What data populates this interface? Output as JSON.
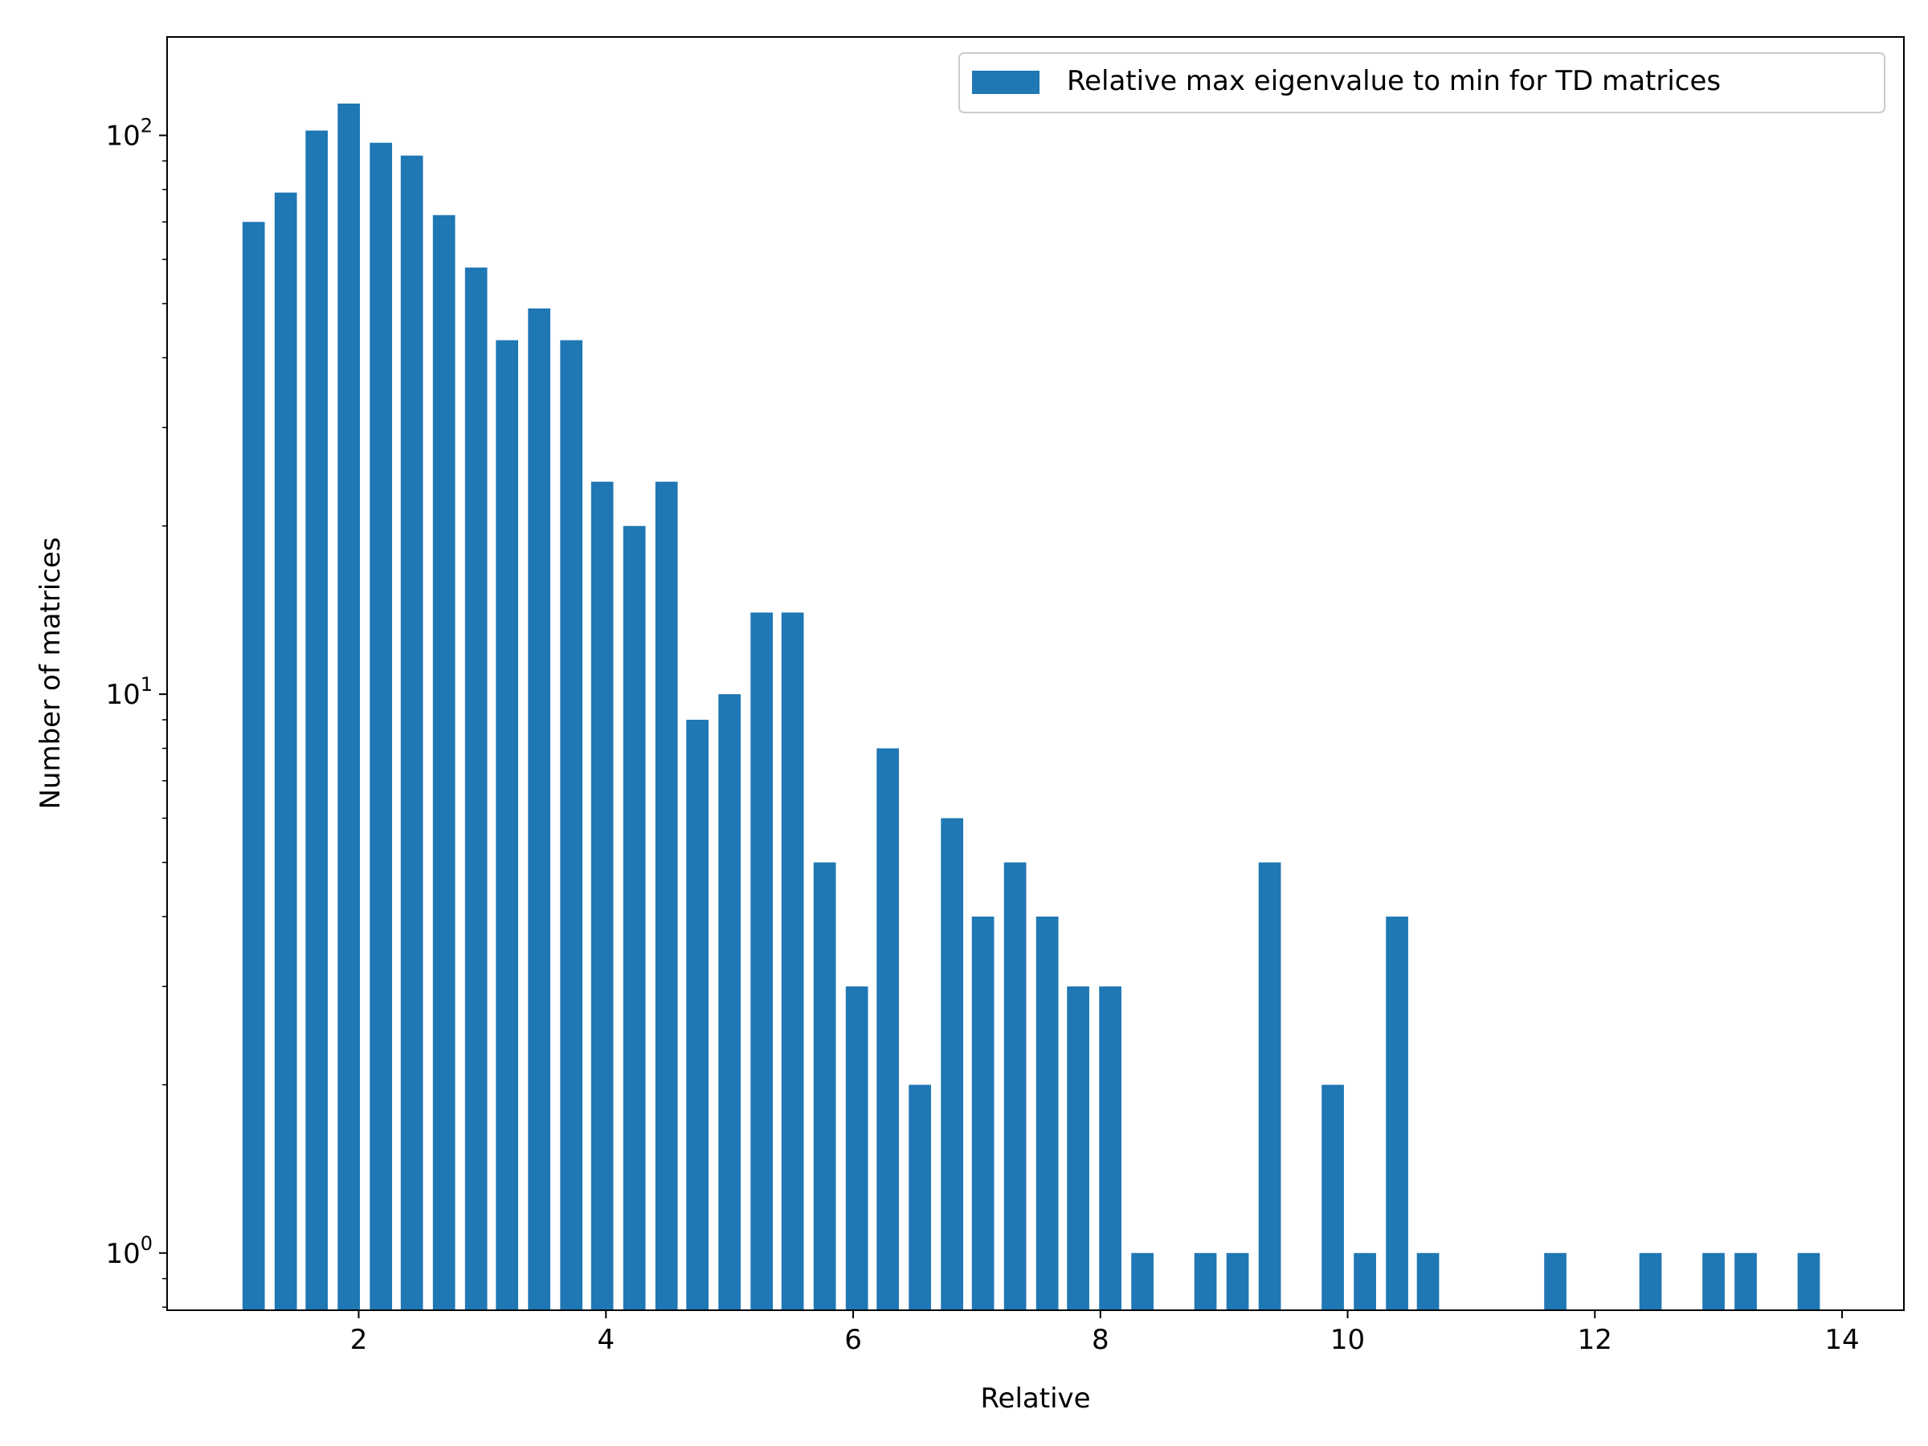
{
  "chart_data": {
    "type": "bar",
    "title": "",
    "xlabel": "Relative",
    "ylabel": "Number of matrices",
    "y_scale": "log",
    "xlim": [
      0.45,
      14.5
    ],
    "ylim": [
      0.79,
      150
    ],
    "x_ticks": [
      2,
      4,
      6,
      8,
      10,
      12,
      14
    ],
    "x_tick_labels": [
      "2",
      "4",
      "6",
      "8",
      "10",
      "12",
      "14"
    ],
    "y_ticks": [
      {
        "value": 1,
        "base": "10",
        "exp": "0"
      },
      {
        "value": 10,
        "base": "10",
        "exp": "1"
      },
      {
        "value": 100,
        "base": "10",
        "exp": "2"
      }
    ],
    "legend": {
      "position": "top-right",
      "label": "Relative max eigenvalue to min for TD matrices"
    },
    "series": [
      {
        "name": "Relative max eigenvalue to min for TD matrices",
        "color": "#1f77b4",
        "bin_width": 0.18,
        "x": [
          1.15,
          1.41,
          1.66,
          1.92,
          2.18,
          2.43,
          2.69,
          2.95,
          3.2,
          3.46,
          3.72,
          3.97,
          4.23,
          4.49,
          4.74,
          5.0,
          5.26,
          5.51,
          5.77,
          6.03,
          6.28,
          6.54,
          6.8,
          7.05,
          7.31,
          7.57,
          7.82,
          8.08,
          8.34,
          8.85,
          9.11,
          9.37,
          9.88,
          10.14,
          10.4,
          10.65,
          11.68,
          12.45,
          12.96,
          13.22,
          13.73
        ],
        "values": [
          70,
          79,
          102,
          114,
          97,
          92,
          72,
          58,
          43,
          49,
          43,
          24,
          20,
          24,
          9,
          10,
          14,
          14,
          5,
          3,
          8,
          2,
          6,
          4,
          5,
          4,
          3,
          3,
          1,
          1,
          1,
          5,
          2,
          1,
          4,
          1,
          1,
          1,
          1,
          1,
          1
        ]
      }
    ]
  }
}
